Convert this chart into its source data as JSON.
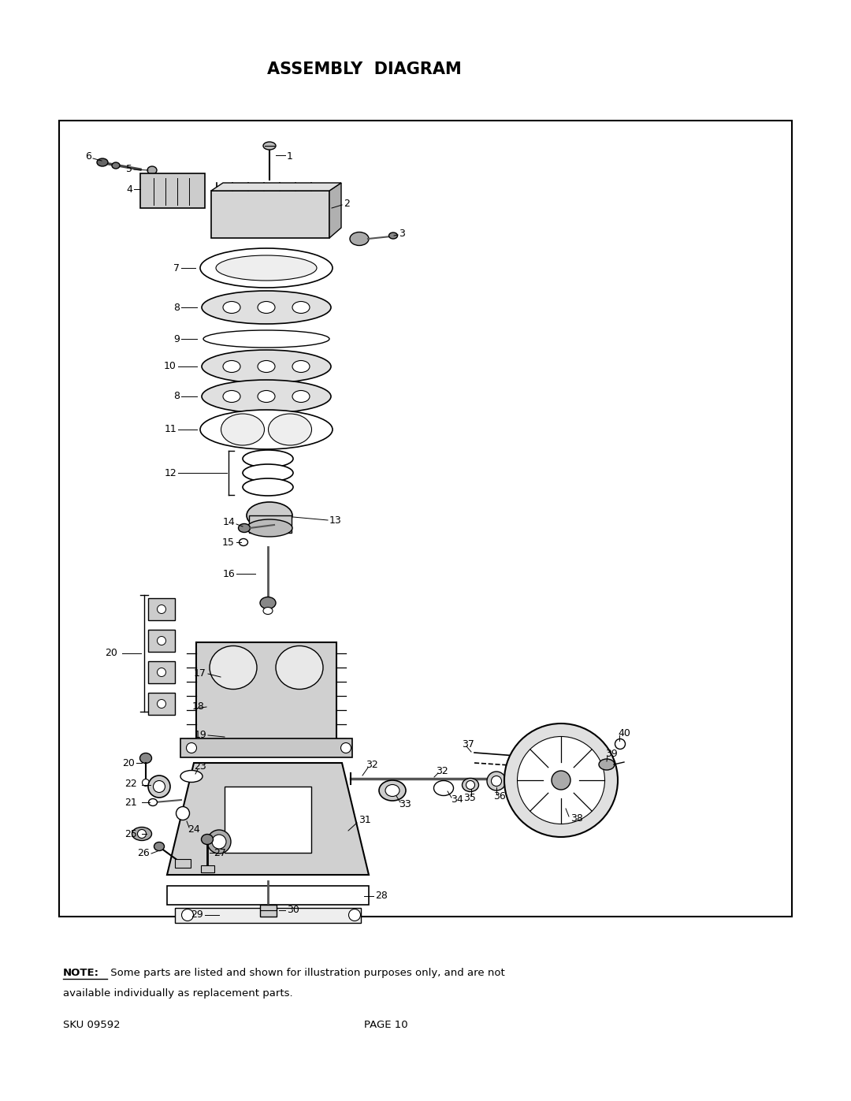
{
  "title": "ASSEMBLY  DIAGRAM",
  "title_fontsize": 15,
  "bg_color": "#ffffff",
  "note_bold": "NOTE:",
  "note_rest": " Some parts are listed and shown for illustration purposes only, and are not",
  "note_line2": "available individually as replacement parts.",
  "sku_text": "SKU 09592",
  "page_text": "PAGE 10"
}
